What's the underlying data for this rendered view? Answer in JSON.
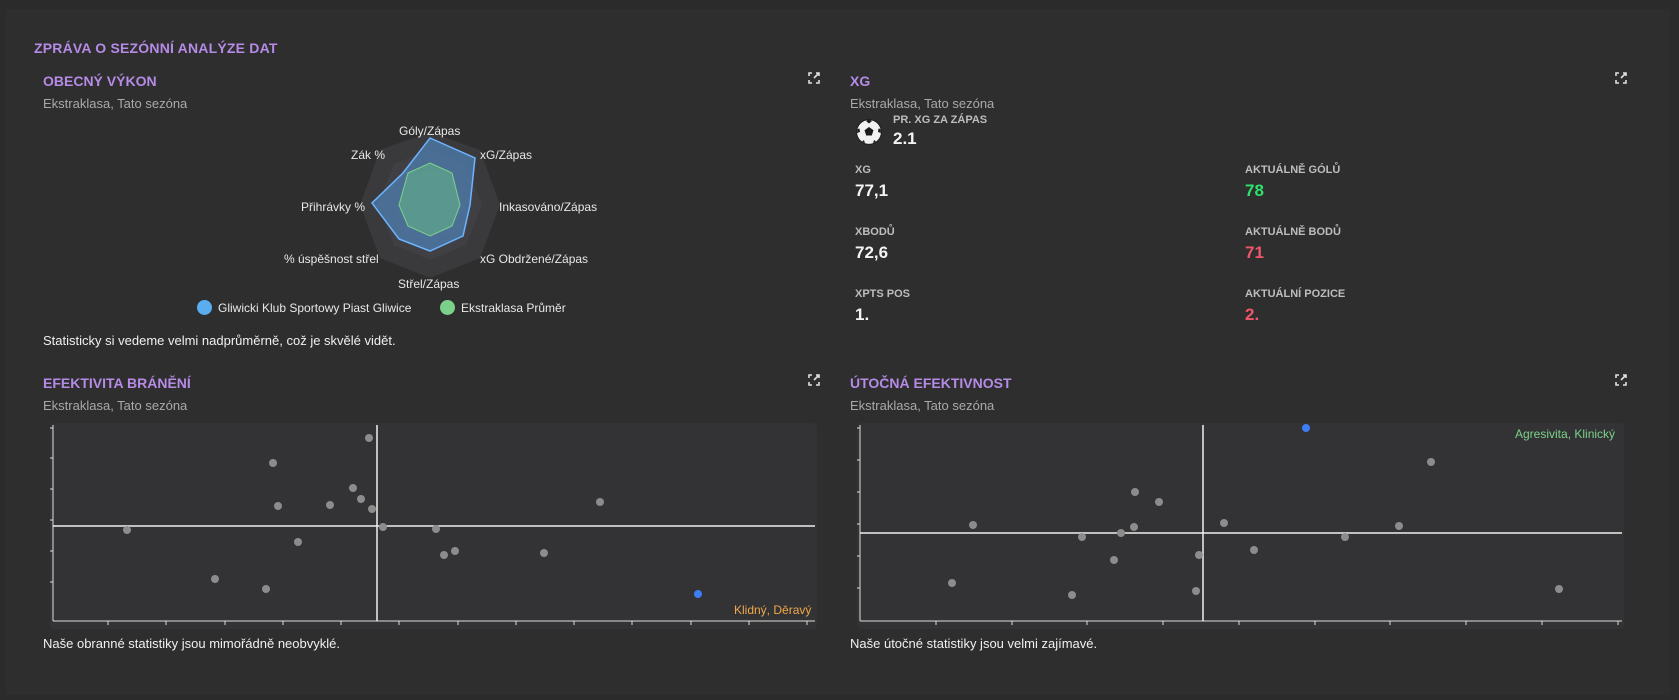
{
  "report": {
    "title": "ZPRÁVA O SEZÓNNÍ ANALÝZE DAT"
  },
  "general": {
    "title": "OBECNÝ VÝKON",
    "subtitle": "Ekstraklasa, Tato sezóna",
    "axes": [
      "Góly/Zápas",
      "xG/Zápas",
      "Inkasováno/Zápas",
      "xG Obdržené/Zápas",
      "Střel/Zápas",
      "% úspěšnost střel",
      "Přihrávky %",
      "Zák %"
    ],
    "legend": [
      {
        "name": "Gliwicki Klub Sportowy Piast Gliwice",
        "color": "#5aaef0"
      },
      {
        "name": "Ekstraklasa Průměr",
        "color": "#7cd18a"
      }
    ],
    "description": "Statisticky si vedeme velmi nadprůměrně, což je skvělé vidět."
  },
  "xg": {
    "title": "XG",
    "subtitle": "Ekstraklasa, Tato sezóna",
    "header_label": "PR. XG ZA ZÁPAS",
    "header_value": "2,1",
    "stats": [
      {
        "label": "XG",
        "value": "77,1"
      },
      {
        "label": "AKTUÁLNĚ GÓLŮ",
        "value": "78"
      },
      {
        "label": "XBODŮ",
        "value": "72,6"
      },
      {
        "label": "AKTUÁLNĚ BODŮ",
        "value": "71"
      },
      {
        "label": "XPTS POS",
        "value": "1."
      },
      {
        "label": "AKTUÁLNÍ POZICE",
        "value": "2."
      }
    ],
    "colors": {
      "good": "#2fe06a",
      "bad": "#f0566a"
    }
  },
  "defense": {
    "title": "EFEKTIVITA BRÁNĚNÍ",
    "subtitle": "Ekstraklasa, Tato sezóna",
    "quadrant_label": "Klidný, Děravý",
    "quadrant_color": "#f0a84a",
    "description": "Naše obranné statistiky jsou mimořádně neobvyklé."
  },
  "attack": {
    "title": "ÚTOČNÁ EFEKTIVNOST",
    "subtitle": "Ekstraklasa, Tato sezóna",
    "quadrant_label": "Agresivita, Klinický",
    "quadrant_color": "#7cd18a",
    "description": "Naše útočné statistiky jsou velmi zajímavé."
  }
}
